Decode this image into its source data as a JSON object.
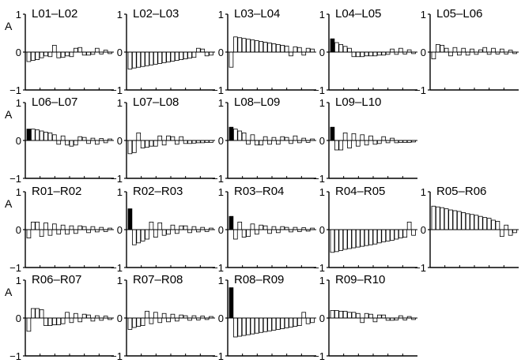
{
  "y_label": "A",
  "y_ticks": [
    "1",
    "0",
    "−1"
  ],
  "chart_data": [
    {
      "type": "bar",
      "title": "L01–L02",
      "ylabel": "A",
      "ylim": [
        -1,
        1
      ],
      "x": [
        1,
        2,
        3,
        4,
        5,
        6,
        7,
        8,
        9,
        10,
        11,
        12,
        13,
        14,
        15,
        16,
        17,
        18,
        19,
        20
      ],
      "values": [
        -0.25,
        -0.22,
        -0.2,
        -0.15,
        -0.1,
        -0.12,
        0.18,
        -0.15,
        -0.14,
        -0.1,
        -0.12,
        0.1,
        0.12,
        -0.08,
        -0.08,
        -0.06,
        0.1,
        -0.05,
        0.05,
        -0.04
      ],
      "highlight": []
    },
    {
      "type": "bar",
      "title": "L02–L03",
      "ylabel": "A",
      "ylim": [
        -1,
        1
      ],
      "x": [
        1,
        2,
        3,
        4,
        5,
        6,
        7,
        8,
        9,
        10,
        11,
        12,
        13,
        14,
        15,
        16,
        17,
        18,
        19,
        20
      ],
      "values": [
        -0.45,
        -0.42,
        -0.4,
        -0.38,
        -0.36,
        -0.34,
        -0.32,
        -0.3,
        -0.28,
        -0.26,
        -0.24,
        -0.22,
        -0.2,
        -0.18,
        -0.16,
        -0.14,
        0.1,
        0.08,
        -0.1,
        -0.08
      ],
      "highlight": []
    },
    {
      "type": "bar",
      "title": "L03–L04",
      "ylabel": "A",
      "ylim": [
        -1,
        1
      ],
      "x": [
        1,
        2,
        3,
        4,
        5,
        6,
        7,
        8,
        9,
        10,
        11,
        12,
        13,
        14,
        15,
        16,
        17,
        18,
        19,
        20
      ],
      "values": [
        -0.4,
        0.4,
        0.38,
        0.36,
        0.34,
        0.32,
        0.3,
        0.28,
        0.26,
        0.24,
        0.22,
        0.2,
        0.18,
        0.16,
        -0.1,
        0.14,
        0.12,
        -0.08,
        0.1,
        0.08
      ],
      "highlight": []
    },
    {
      "type": "bar",
      "title": "L04–L05",
      "ylabel": "A",
      "ylim": [
        -1,
        1
      ],
      "x": [
        1,
        2,
        3,
        4,
        5,
        6,
        7,
        8,
        9,
        10,
        11,
        12,
        13,
        14,
        15,
        16,
        17,
        18,
        19,
        20
      ],
      "values": [
        0.35,
        0.25,
        0.2,
        0.15,
        0.1,
        -0.12,
        -0.12,
        -0.12,
        -0.1,
        -0.1,
        -0.1,
        -0.08,
        -0.08,
        -0.06,
        0.08,
        -0.06,
        0.1,
        -0.05,
        0.06,
        -0.04
      ],
      "highlight": [
        1
      ]
    },
    {
      "type": "bar",
      "title": "L05–L06",
      "ylabel": "A",
      "ylim": [
        -1,
        1
      ],
      "x": [
        1,
        2,
        3,
        4,
        5,
        6,
        7,
        8,
        9,
        10,
        11,
        12,
        13,
        14,
        15,
        16,
        17,
        18,
        19,
        20
      ],
      "values": [
        -0.18,
        0.2,
        0.18,
        0.1,
        -0.1,
        0.12,
        -0.08,
        0.1,
        -0.08,
        0.08,
        -0.06,
        0.06,
        0.12,
        -0.06,
        0.1,
        -0.05,
        0.08,
        -0.05,
        0.05,
        -0.04
      ],
      "highlight": []
    },
    {
      "type": "bar",
      "title": "L06–L07",
      "ylabel": "A",
      "ylim": [
        -1,
        1
      ],
      "x": [
        1,
        2,
        3,
        4,
        5,
        6,
        7,
        8,
        9,
        10,
        11,
        12,
        13,
        14,
        15,
        16,
        17,
        18,
        19,
        20
      ],
      "values": [
        0.3,
        0.3,
        0.28,
        0.25,
        0.22,
        0.2,
        0.15,
        -0.1,
        0.12,
        -0.12,
        -0.15,
        -0.12,
        0.1,
        0.08,
        -0.08,
        0.06,
        -0.1,
        0.05,
        -0.06,
        0.04
      ],
      "highlight": [
        1
      ]
    },
    {
      "type": "bar",
      "title": "L07–L08",
      "ylabel": "A",
      "ylim": [
        -1,
        1
      ],
      "x": [
        1,
        2,
        3,
        4,
        5,
        6,
        7,
        8,
        9,
        10,
        11,
        12,
        13,
        14,
        15,
        16,
        17,
        18,
        19,
        20
      ],
      "values": [
        -0.35,
        -0.32,
        0.2,
        -0.2,
        -0.18,
        -0.15,
        -0.15,
        0.12,
        -0.12,
        0.12,
        0.1,
        -0.1,
        0.1,
        -0.08,
        -0.08,
        -0.07,
        -0.06,
        -0.06,
        -0.05,
        -0.05
      ],
      "highlight": [
        1
      ]
    },
    {
      "type": "bar",
      "title": "L08–L09",
      "ylabel": "A",
      "ylim": [
        -1,
        1
      ],
      "x": [
        1,
        2,
        3,
        4,
        5,
        6,
        7,
        8,
        9,
        10,
        11,
        12,
        13,
        14,
        15,
        16,
        17,
        18,
        19,
        20
      ],
      "values": [
        0.35,
        0.3,
        0.25,
        0.2,
        -0.1,
        0.15,
        -0.12,
        -0.12,
        0.1,
        -0.1,
        0.08,
        -0.1,
        0.1,
        0.08,
        -0.08,
        0.12,
        -0.06,
        0.06,
        -0.05,
        0.04
      ],
      "highlight": [
        1
      ]
    },
    {
      "type": "bar",
      "title": "L09–L10",
      "ylabel": "A",
      "ylim": [
        -1,
        1
      ],
      "x": [
        1,
        2,
        3,
        4,
        5,
        6,
        7,
        8,
        9,
        10,
        11,
        12,
        13,
        14,
        15,
        16,
        17,
        18,
        19,
        20
      ],
      "values": [
        0.35,
        -0.25,
        -0.25,
        0.2,
        -0.2,
        0.18,
        -0.15,
        0.15,
        -0.12,
        0.12,
        -0.1,
        -0.08,
        0.1,
        -0.06,
        0.06,
        -0.06,
        -0.05,
        -0.05,
        -0.05,
        -0.04
      ],
      "highlight": [
        1
      ]
    },
    {
      "type": "bar",
      "title": "R01–R02",
      "ylabel": "A",
      "ylim": [
        -1,
        1
      ],
      "x": [
        1,
        2,
        3,
        4,
        5,
        6,
        7,
        8,
        9,
        10,
        11,
        12,
        13,
        14,
        15,
        16,
        17,
        18,
        19,
        20
      ],
      "values": [
        -0.22,
        0.2,
        0.2,
        -0.18,
        0.18,
        -0.15,
        0.15,
        -0.12,
        0.12,
        -0.12,
        0.1,
        -0.1,
        0.1,
        0.08,
        -0.08,
        0.08,
        -0.06,
        0.06,
        -0.05,
        0.04
      ],
      "highlight": []
    },
    {
      "type": "bar",
      "title": "R02–R03",
      "ylabel": "A",
      "ylim": [
        -1,
        1
      ],
      "x": [
        1,
        2,
        3,
        4,
        5,
        6,
        7,
        8,
        9,
        10,
        11,
        12,
        13,
        14,
        15,
        16,
        17,
        18,
        19,
        20
      ],
      "values": [
        0.55,
        -0.4,
        -0.35,
        -0.3,
        -0.25,
        0.2,
        -0.2,
        0.18,
        -0.15,
        -0.12,
        0.12,
        -0.1,
        0.1,
        0.1,
        -0.08,
        0.08,
        -0.06,
        0.06,
        -0.05,
        0.04
      ],
      "highlight": [
        1
      ]
    },
    {
      "type": "bar",
      "title": "R03–R04",
      "ylabel": "A",
      "ylim": [
        -1,
        1
      ],
      "x": [
        1,
        2,
        3,
        4,
        5,
        6,
        7,
        8,
        9,
        10,
        11,
        12,
        13,
        14,
        15,
        16,
        17,
        18,
        19,
        20
      ],
      "values": [
        0.35,
        -0.25,
        0.2,
        -0.2,
        -0.18,
        0.15,
        -0.12,
        0.12,
        0.1,
        -0.1,
        0.08,
        -0.08,
        0.08,
        0.06,
        -0.06,
        0.06,
        -0.05,
        0.05,
        -0.04,
        0.04
      ],
      "highlight": [
        1
      ]
    },
    {
      "type": "bar",
      "title": "R04–R05",
      "ylabel": "A",
      "ylim": [
        -1,
        1
      ],
      "x": [
        1,
        2,
        3,
        4,
        5,
        6,
        7,
        8,
        9,
        10,
        11,
        12,
        13,
        14,
        15,
        16,
        17,
        18,
        19,
        20
      ],
      "values": [
        -0.6,
        -0.58,
        -0.55,
        -0.52,
        -0.5,
        -0.48,
        -0.46,
        -0.44,
        -0.42,
        -0.4,
        -0.38,
        -0.35,
        -0.32,
        -0.3,
        -0.28,
        -0.25,
        -0.22,
        -0.2,
        0.2,
        -0.15
      ],
      "highlight": [
        1
      ]
    },
    {
      "type": "bar",
      "title": "R05–R06",
      "ylabel": "A",
      "ylim": [
        -1,
        1
      ],
      "x": [
        1,
        2,
        3,
        4,
        5,
        6,
        7,
        8,
        9,
        10,
        11,
        12,
        13,
        14,
        15,
        16,
        17,
        18,
        19,
        20
      ],
      "values": [
        0.62,
        0.6,
        0.58,
        0.55,
        0.52,
        0.5,
        0.48,
        0.45,
        0.42,
        0.4,
        0.38,
        0.35,
        0.32,
        0.3,
        0.25,
        0.22,
        -0.18,
        0.12,
        -0.15,
        -0.08
      ],
      "highlight": []
    },
    {
      "type": "bar",
      "title": "R06–R07",
      "ylabel": "A",
      "ylim": [
        -1,
        1
      ],
      "x": [
        1,
        2,
        3,
        4,
        5,
        6,
        7,
        8,
        9,
        10,
        11,
        12,
        13,
        14,
        15,
        16,
        17,
        18,
        19,
        20
      ],
      "values": [
        -0.35,
        0.25,
        0.25,
        0.22,
        -0.2,
        -0.2,
        -0.18,
        -0.18,
        -0.15,
        0.15,
        -0.12,
        0.12,
        -0.1,
        0.1,
        0.08,
        -0.08,
        0.06,
        -0.06,
        0.05,
        -0.04
      ],
      "highlight": [
        3,
        4
      ]
    },
    {
      "type": "bar",
      "title": "R07–R08",
      "ylabel": "A",
      "ylim": [
        -1,
        1
      ],
      "x": [
        1,
        2,
        3,
        4,
        5,
        6,
        7,
        8,
        9,
        10,
        11,
        12,
        13,
        14,
        15,
        16,
        17,
        18,
        19,
        20
      ],
      "values": [
        -0.3,
        -0.25,
        -0.22,
        -0.2,
        0.18,
        -0.15,
        0.15,
        -0.12,
        0.12,
        -0.1,
        0.1,
        -0.08,
        0.08,
        0.06,
        -0.06,
        0.06,
        -0.05,
        0.05,
        -0.04,
        0.04
      ],
      "highlight": [
        3,
        4
      ]
    },
    {
      "type": "bar",
      "title": "R08–R09",
      "ylabel": "A",
      "ylim": [
        -1,
        1
      ],
      "x": [
        1,
        2,
        3,
        4,
        5,
        6,
        7,
        8,
        9,
        10,
        11,
        12,
        13,
        14,
        15,
        16,
        17,
        18,
        19,
        20
      ],
      "values": [
        0.8,
        -0.5,
        -0.48,
        -0.46,
        -0.44,
        -0.42,
        -0.4,
        -0.38,
        -0.36,
        -0.34,
        -0.32,
        -0.3,
        -0.28,
        -0.26,
        -0.24,
        -0.22,
        -0.2,
        0.15,
        -0.15,
        -0.12
      ],
      "highlight": [
        1
      ]
    },
    {
      "type": "bar",
      "title": "R09–R10",
      "ylabel": "A",
      "ylim": [
        -1,
        1
      ],
      "x": [
        1,
        2,
        3,
        4,
        5,
        6,
        7,
        8,
        9,
        10,
        11,
        12,
        13,
        14,
        15,
        16,
        17,
        18,
        19,
        20
      ],
      "values": [
        0.2,
        0.2,
        0.18,
        0.18,
        0.15,
        0.15,
        0.12,
        -0.12,
        0.12,
        0.1,
        -0.1,
        0.08,
        0.08,
        -0.06,
        -0.06,
        -0.05,
        0.06,
        -0.05,
        0.04,
        -0.04
      ],
      "highlight": [
        1
      ]
    }
  ]
}
